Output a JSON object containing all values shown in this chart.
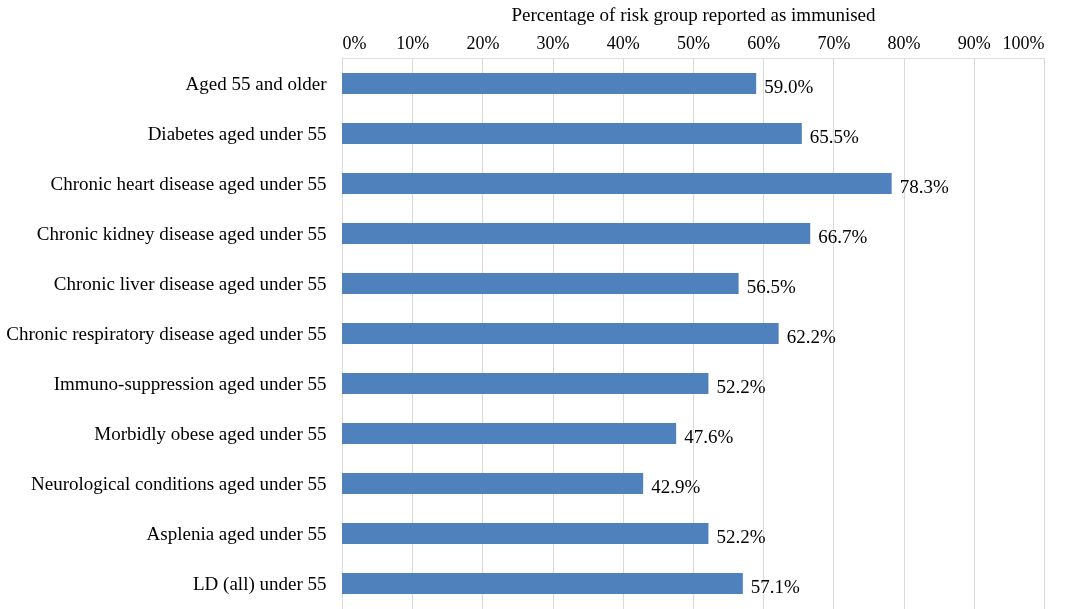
{
  "chart_data": {
    "type": "bar",
    "orientation": "horizontal",
    "xlabel": "Percentage of risk group reported as immunised",
    "categories": [
      "Aged 55 and older",
      "Diabetes aged under 55",
      "Chronic heart disease aged under 55",
      "Chronic kidney disease aged under 55",
      "Chronic liver disease aged under 55",
      "Chronic respiratory disease aged under 55",
      "Immuno-suppression aged under 55",
      "Morbidly obese aged under 55",
      "Neurological conditions aged under 55",
      "Asplenia aged under 55",
      "LD (all) under 55"
    ],
    "values": [
      59.0,
      65.5,
      78.3,
      66.7,
      56.5,
      62.2,
      52.2,
      47.6,
      42.9,
      52.2,
      57.1
    ],
    "value_labels": [
      "59.0%",
      "65.5%",
      "78.3%",
      "66.7%",
      "56.5%",
      "62.2%",
      "52.2%",
      "47.6%",
      "42.9%",
      "52.2%",
      "57.1%"
    ],
    "color": "#4f81bd",
    "xlim": [
      0,
      100
    ],
    "xticks": [
      {
        "value": 0,
        "label": "0%"
      },
      {
        "value": 10,
        "label": "10%"
      },
      {
        "value": 20,
        "label": "20%"
      },
      {
        "value": 30,
        "label": "30%"
      },
      {
        "value": 40,
        "label": "40%"
      },
      {
        "value": 50,
        "label": "50%"
      },
      {
        "value": 60,
        "label": "60%"
      },
      {
        "value": 70,
        "label": "70%"
      },
      {
        "value": 80,
        "label": "80%"
      },
      {
        "value": 90,
        "label": "90%"
      },
      {
        "value": 100,
        "label": "100%"
      }
    ],
    "grid": "x"
  }
}
